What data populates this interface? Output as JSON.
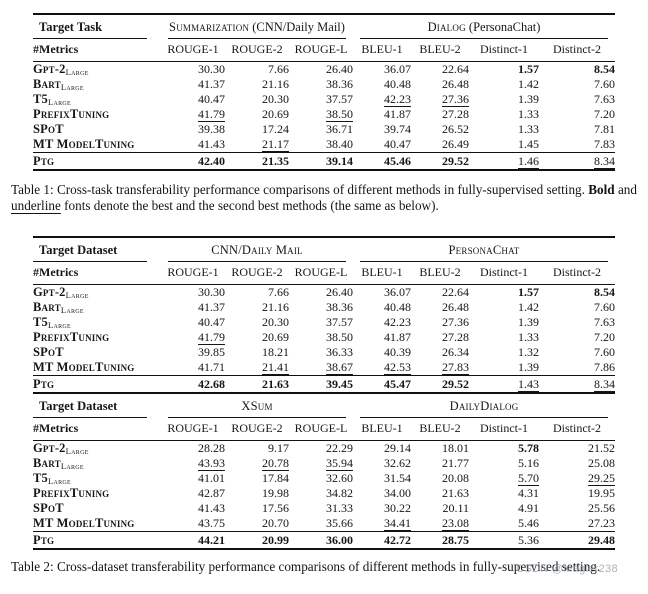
{
  "colors": {
    "text": "#161616",
    "rule": "#111111",
    "watermark_gray": "#8d99a6",
    "background": "#ffffff"
  },
  "caption1": {
    "part1": "Table 1: Cross-task transferability performance comparisons of different methods in fully-supervised setting. ",
    "bold_word": "Bold",
    "part2": " and ",
    "underline_word": "underline",
    "part3": " fonts denote the best and the second best methods (the same as below)."
  },
  "caption2": {
    "text": "Table 2: Cross-dataset transferability performance comparisons of different methods in fully-supervised setting."
  },
  "watermark": {
    "text": "CSDN @Magier238"
  },
  "tables": [
    {
      "id": "table-cross-task",
      "name": "cross-task-results",
      "joined": false,
      "target_label": "Target Task",
      "metrics_label": "#Metrics",
      "groups": [
        {
          "sc": "Summarization",
          "normal": " (CNN/Daily Mail)",
          "span": 3
        },
        {
          "sc": "Dialog",
          "normal": " (PersonaChat)",
          "span": 4
        }
      ],
      "metrics": [
        "ROUGE-1",
        "ROUGE-2",
        "ROUGE-L",
        "BLEU-1",
        "BLEU-2",
        "Distinct-1",
        "Distinct-2"
      ],
      "rows": [
        {
          "method": "Gpt-2",
          "sub": "Large",
          "final": false,
          "cells": [
            {
              "v": "30.30"
            },
            {
              "v": "7.66"
            },
            {
              "v": "26.40"
            },
            {
              "v": "36.07"
            },
            {
              "v": "22.64"
            },
            {
              "v": "1.57",
              "s": "b"
            },
            {
              "v": "8.54",
              "s": "b"
            }
          ]
        },
        {
          "method": "Bart",
          "sub": "Large",
          "final": false,
          "cells": [
            {
              "v": "41.37"
            },
            {
              "v": "21.16"
            },
            {
              "v": "38.36"
            },
            {
              "v": "40.48"
            },
            {
              "v": "26.48"
            },
            {
              "v": "1.42"
            },
            {
              "v": "7.60"
            }
          ]
        },
        {
          "method": "T5",
          "sub": "Large",
          "final": false,
          "cells": [
            {
              "v": "40.47"
            },
            {
              "v": "20.30"
            },
            {
              "v": "37.57"
            },
            {
              "v": "42.23",
              "s": "u"
            },
            {
              "v": "27.36",
              "s": "u"
            },
            {
              "v": "1.39"
            },
            {
              "v": "7.63"
            }
          ]
        },
        {
          "method": "PrefixTuning",
          "sub": "",
          "final": false,
          "cells": [
            {
              "v": "41.79",
              "s": "u"
            },
            {
              "v": "20.69"
            },
            {
              "v": "38.50",
              "s": "u"
            },
            {
              "v": "41.87"
            },
            {
              "v": "27.28"
            },
            {
              "v": "1.33"
            },
            {
              "v": "7.20"
            }
          ]
        },
        {
          "method": "SPoT",
          "sub": "",
          "final": false,
          "cells": [
            {
              "v": "39.38"
            },
            {
              "v": "17.24"
            },
            {
              "v": "36.71"
            },
            {
              "v": "39.74"
            },
            {
              "v": "26.52"
            },
            {
              "v": "1.33"
            },
            {
              "v": "7.81"
            }
          ]
        },
        {
          "method": "MT ModelTuning",
          "sub": "",
          "final": false,
          "cells": [
            {
              "v": "41.43"
            },
            {
              "v": "21.17",
              "s": "u"
            },
            {
              "v": "38.40"
            },
            {
              "v": "40.47"
            },
            {
              "v": "26.49"
            },
            {
              "v": "1.45"
            },
            {
              "v": "7.83"
            }
          ]
        },
        {
          "method": "Ptg",
          "sub": "",
          "final": true,
          "cells": [
            {
              "v": "42.40",
              "s": "b"
            },
            {
              "v": "21.35",
              "s": "b"
            },
            {
              "v": "39.14",
              "s": "b"
            },
            {
              "v": "45.46",
              "s": "b"
            },
            {
              "v": "29.52",
              "s": "b"
            },
            {
              "v": "1.46",
              "s": "u"
            },
            {
              "v": "8.34",
              "s": "u"
            }
          ]
        }
      ]
    },
    {
      "id": "table-cross-dataset-a",
      "name": "cross-dataset-results-cnn-personachat",
      "joined": false,
      "target_label": "Target Dataset",
      "metrics_label": "#Metrics",
      "groups": [
        {
          "sc": "CNN/Daily Mail",
          "normal": "",
          "span": 3
        },
        {
          "sc": "PersonaChat",
          "normal": "",
          "span": 4
        }
      ],
      "metrics": [
        "ROUGE-1",
        "ROUGE-2",
        "ROUGE-L",
        "BLEU-1",
        "BLEU-2",
        "Distinct-1",
        "Distinct-2"
      ],
      "rows": [
        {
          "method": "Gpt-2",
          "sub": "Large",
          "final": false,
          "cells": [
            {
              "v": "30.30"
            },
            {
              "v": "7.66"
            },
            {
              "v": "26.40"
            },
            {
              "v": "36.07"
            },
            {
              "v": "22.64"
            },
            {
              "v": "1.57",
              "s": "b"
            },
            {
              "v": "8.54",
              "s": "b"
            }
          ]
        },
        {
          "method": "Bart",
          "sub": "Large",
          "final": false,
          "cells": [
            {
              "v": "41.37"
            },
            {
              "v": "21.16"
            },
            {
              "v": "38.36"
            },
            {
              "v": "40.48"
            },
            {
              "v": "26.48"
            },
            {
              "v": "1.42"
            },
            {
              "v": "7.60"
            }
          ]
        },
        {
          "method": "T5",
          "sub": "Large",
          "final": false,
          "cells": [
            {
              "v": "40.47"
            },
            {
              "v": "20.30"
            },
            {
              "v": "37.57"
            },
            {
              "v": "42.23"
            },
            {
              "v": "27.36"
            },
            {
              "v": "1.39"
            },
            {
              "v": "7.63"
            }
          ]
        },
        {
          "method": "PrefixTuning",
          "sub": "",
          "final": false,
          "cells": [
            {
              "v": "41.79",
              "s": "u"
            },
            {
              "v": "20.69"
            },
            {
              "v": "38.50"
            },
            {
              "v": "41.87"
            },
            {
              "v": "27.28"
            },
            {
              "v": "1.33"
            },
            {
              "v": "7.20"
            }
          ]
        },
        {
          "method": "SPoT",
          "sub": "",
          "final": false,
          "cells": [
            {
              "v": "39.85"
            },
            {
              "v": "18.21"
            },
            {
              "v": "36.33"
            },
            {
              "v": "40.39"
            },
            {
              "v": "26.34"
            },
            {
              "v": "1.32"
            },
            {
              "v": "7.60"
            }
          ]
        },
        {
          "method": "MT ModelTuning",
          "sub": "",
          "final": false,
          "cells": [
            {
              "v": "41.71"
            },
            {
              "v": "21.41",
              "s": "u"
            },
            {
              "v": "38.67",
              "s": "u"
            },
            {
              "v": "42.53",
              "s": "u"
            },
            {
              "v": "27.83",
              "s": "u"
            },
            {
              "v": "1.39"
            },
            {
              "v": "7.86"
            }
          ]
        },
        {
          "method": "Ptg",
          "sub": "",
          "final": true,
          "cells": [
            {
              "v": "42.68",
              "s": "b"
            },
            {
              "v": "21.63",
              "s": "b"
            },
            {
              "v": "39.45",
              "s": "b"
            },
            {
              "v": "45.47",
              "s": "b"
            },
            {
              "v": "29.52",
              "s": "b"
            },
            {
              "v": "1.43",
              "s": "u"
            },
            {
              "v": "8.34",
              "s": "u"
            }
          ]
        }
      ]
    },
    {
      "id": "table-cross-dataset-b",
      "name": "cross-dataset-results-xsum-dailydialog",
      "joined": true,
      "target_label": "Target Dataset",
      "metrics_label": "#Metrics",
      "groups": [
        {
          "sc": "XSum",
          "normal": "",
          "span": 3
        },
        {
          "sc": "DailyDialog",
          "normal": "",
          "span": 4
        }
      ],
      "metrics": [
        "ROUGE-1",
        "ROUGE-2",
        "ROUGE-L",
        "BLEU-1",
        "BLEU-2",
        "Distinct-1",
        "Distinct-2"
      ],
      "rows": [
        {
          "method": "Gpt-2",
          "sub": "Large",
          "final": false,
          "cells": [
            {
              "v": "28.28"
            },
            {
              "v": "9.17"
            },
            {
              "v": "22.29"
            },
            {
              "v": "29.14"
            },
            {
              "v": "18.01"
            },
            {
              "v": "5.78",
              "s": "b"
            },
            {
              "v": "21.52"
            }
          ]
        },
        {
          "method": "Bart",
          "sub": "Large",
          "final": false,
          "cells": [
            {
              "v": "43.93",
              "s": "u"
            },
            {
              "v": "20.78",
              "s": "u"
            },
            {
              "v": "35.94",
              "s": "u"
            },
            {
              "v": "32.62"
            },
            {
              "v": "21.77"
            },
            {
              "v": "5.16"
            },
            {
              "v": "25.08"
            }
          ]
        },
        {
          "method": "T5",
          "sub": "Large",
          "final": false,
          "cells": [
            {
              "v": "41.01"
            },
            {
              "v": "17.84"
            },
            {
              "v": "32.60"
            },
            {
              "v": "31.54"
            },
            {
              "v": "20.08"
            },
            {
              "v": "5.70",
              "s": "u"
            },
            {
              "v": "29.25",
              "s": "u"
            }
          ]
        },
        {
          "method": "PrefixTuning",
          "sub": "",
          "final": false,
          "cells": [
            {
              "v": "42.87"
            },
            {
              "v": "19.98"
            },
            {
              "v": "34.82"
            },
            {
              "v": "34.00"
            },
            {
              "v": "21.63"
            },
            {
              "v": "4.31"
            },
            {
              "v": "19.95"
            }
          ]
        },
        {
          "method": "SPoT",
          "sub": "",
          "final": false,
          "cells": [
            {
              "v": "41.43"
            },
            {
              "v": "17.56"
            },
            {
              "v": "31.33"
            },
            {
              "v": "30.22"
            },
            {
              "v": "20.11"
            },
            {
              "v": "4.91"
            },
            {
              "v": "25.56"
            }
          ]
        },
        {
          "method": "MT ModelTuning",
          "sub": "",
          "final": false,
          "cells": [
            {
              "v": "43.75"
            },
            {
              "v": "20.70"
            },
            {
              "v": "35.66"
            },
            {
              "v": "34.41",
              "s": "u"
            },
            {
              "v": "23.08",
              "s": "u"
            },
            {
              "v": "5.46"
            },
            {
              "v": "27.23"
            }
          ]
        },
        {
          "method": "Ptg",
          "sub": "",
          "final": true,
          "cells": [
            {
              "v": "44.21",
              "s": "b"
            },
            {
              "v": "20.99",
              "s": "b"
            },
            {
              "v": "36.00",
              "s": "b"
            },
            {
              "v": "42.72",
              "s": "b"
            },
            {
              "v": "28.75",
              "s": "b"
            },
            {
              "v": "5.36"
            },
            {
              "v": "29.48",
              "s": "b"
            }
          ]
        }
      ]
    }
  ]
}
